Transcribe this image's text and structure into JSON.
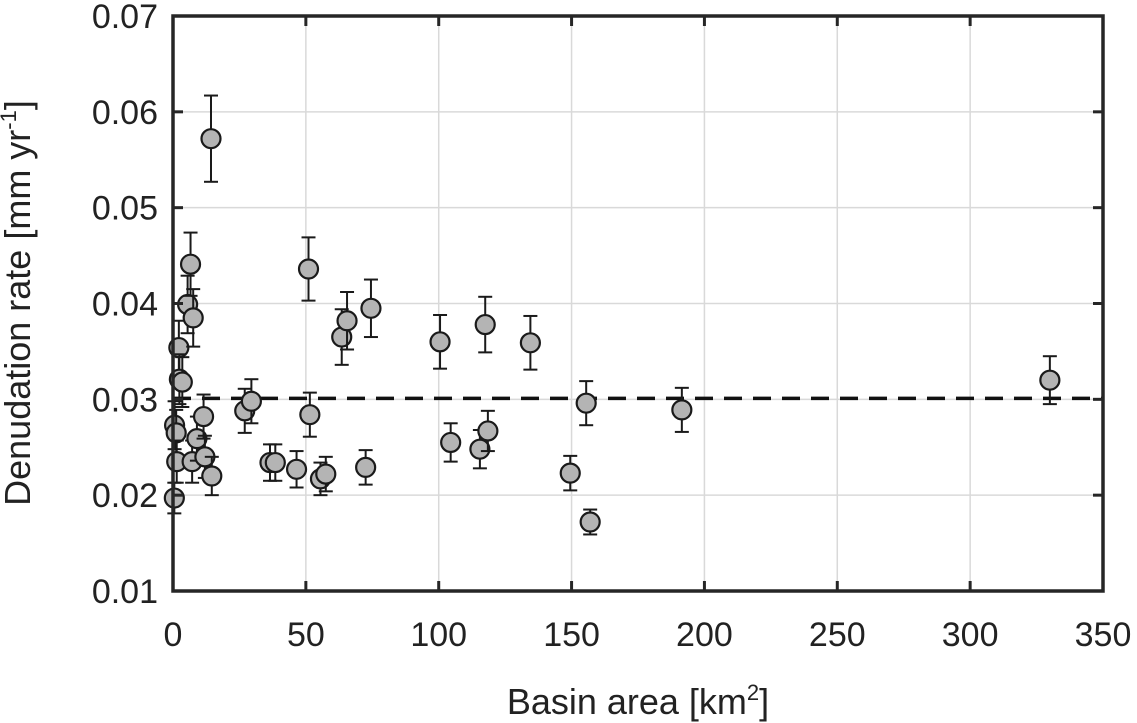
{
  "chart_data": {
    "type": "scatter",
    "xlabel": {
      "main": "Basin area [km",
      "sup": "2",
      "end": "]"
    },
    "ylabel": {
      "main": "Denudation rate [mm yr",
      "sup": "-1",
      "end": "]"
    },
    "xlim": [
      0,
      350
    ],
    "ylim": [
      0.01,
      0.07
    ],
    "xticks": [
      0,
      50,
      100,
      150,
      200,
      250,
      300,
      350
    ],
    "yticks": [
      0.01,
      0.02,
      0.03,
      0.04,
      0.05,
      0.06,
      0.07
    ],
    "xtick_labels": [
      "0",
      "50",
      "100",
      "150",
      "200",
      "250",
      "300",
      "350"
    ],
    "ytick_labels": [
      "0.01",
      "0.02",
      "0.03",
      "0.04",
      "0.05",
      "0.06",
      "0.07"
    ],
    "grid": true,
    "reference_line": {
      "y": 0.0301,
      "style": "dashed"
    },
    "colors": {
      "marker_fill": "#b4b4b4",
      "marker_edge": "#1a1a1a",
      "axis": "#262626",
      "grid": "#d9d9d9"
    },
    "points": [
      {
        "x": 0.5,
        "y": 0.0197,
        "err": 0.0016
      },
      {
        "x": 0.6,
        "y": 0.0273,
        "err": 0.0025
      },
      {
        "x": 1.2,
        "y": 0.0265,
        "err": 0.0024
      },
      {
        "x": 1.4,
        "y": 0.0235,
        "err": 0.0022
      },
      {
        "x": 2.2,
        "y": 0.0354,
        "err": 0.0028
      },
      {
        "x": 2.4,
        "y": 0.0321,
        "err": 0.0026
      },
      {
        "x": 3.5,
        "y": 0.0318,
        "err": 0.0026
      },
      {
        "x": 5.5,
        "y": 0.0399,
        "err": 0.003
      },
      {
        "x": 6.6,
        "y": 0.0441,
        "err": 0.0033
      },
      {
        "x": 7.2,
        "y": 0.0235,
        "err": 0.0022
      },
      {
        "x": 7.6,
        "y": 0.0385,
        "err": 0.003
      },
      {
        "x": 9.0,
        "y": 0.0259,
        "err": 0.0023
      },
      {
        "x": 11.5,
        "y": 0.0282,
        "err": 0.0023
      },
      {
        "x": 12.0,
        "y": 0.024,
        "err": 0.0022
      },
      {
        "x": 14.3,
        "y": 0.0572,
        "err": 0.0045
      },
      {
        "x": 14.6,
        "y": 0.022,
        "err": 0.002
      },
      {
        "x": 27.0,
        "y": 0.0288,
        "err": 0.0023
      },
      {
        "x": 29.5,
        "y": 0.0298,
        "err": 0.0023
      },
      {
        "x": 36.5,
        "y": 0.0234,
        "err": 0.0019
      },
      {
        "x": 38.5,
        "y": 0.0234,
        "err": 0.0019
      },
      {
        "x": 46.5,
        "y": 0.0227,
        "err": 0.0019
      },
      {
        "x": 51.0,
        "y": 0.0436,
        "err": 0.0033
      },
      {
        "x": 51.5,
        "y": 0.0284,
        "err": 0.0023
      },
      {
        "x": 55.5,
        "y": 0.0217,
        "err": 0.0017
      },
      {
        "x": 57.5,
        "y": 0.0222,
        "err": 0.0018
      },
      {
        "x": 63.5,
        "y": 0.0365,
        "err": 0.0029
      },
      {
        "x": 65.5,
        "y": 0.0382,
        "err": 0.003
      },
      {
        "x": 72.5,
        "y": 0.0229,
        "err": 0.0018
      },
      {
        "x": 74.5,
        "y": 0.0395,
        "err": 0.003
      },
      {
        "x": 100.5,
        "y": 0.036,
        "err": 0.0028
      },
      {
        "x": 104.5,
        "y": 0.0255,
        "err": 0.002
      },
      {
        "x": 115.5,
        "y": 0.0248,
        "err": 0.002
      },
      {
        "x": 117.5,
        "y": 0.0378,
        "err": 0.0029
      },
      {
        "x": 118.5,
        "y": 0.0267,
        "err": 0.0021
      },
      {
        "x": 134.5,
        "y": 0.0359,
        "err": 0.0028
      },
      {
        "x": 149.5,
        "y": 0.0223,
        "err": 0.0018
      },
      {
        "x": 155.5,
        "y": 0.0296,
        "err": 0.0023
      },
      {
        "x": 157.0,
        "y": 0.0172,
        "err": 0.0013
      },
      {
        "x": 191.5,
        "y": 0.0289,
        "err": 0.0023
      },
      {
        "x": 330.0,
        "y": 0.032,
        "err": 0.0025
      }
    ]
  }
}
